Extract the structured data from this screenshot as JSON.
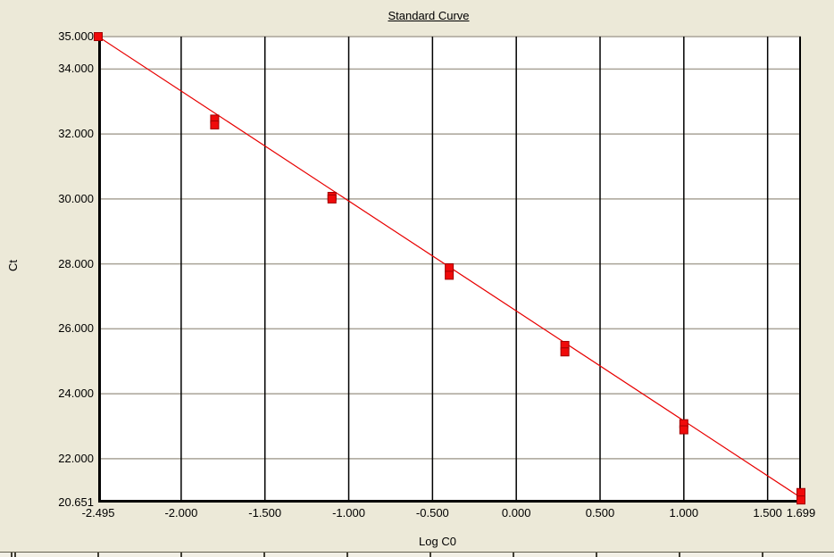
{
  "window": {
    "background_color": "#ECE9D8",
    "plot_background_color": "#FFFFFF"
  },
  "chart": {
    "title": "Standard Curve",
    "y_axis_title": "Ct",
    "x_axis_title": "Log C0"
  },
  "chart_data": {
    "type": "scatter",
    "title": "Standard Curve",
    "xlabel": "Log C0",
    "ylabel": "Ct",
    "xlim": [
      -2.495,
      1.699
    ],
    "ylim": [
      20.651,
      35.0
    ],
    "grid": "on",
    "x_ticks": [
      {
        "label": "-2.495",
        "value": -2.495
      },
      {
        "label": "-2.000",
        "value": -2.0
      },
      {
        "label": "-1.500",
        "value": -1.5
      },
      {
        "label": "-1.000",
        "value": -1.0
      },
      {
        "label": "-0.500",
        "value": -0.5
      },
      {
        "label": "0.000",
        "value": 0.0
      },
      {
        "label": "0.500",
        "value": 0.5
      },
      {
        "label": "1.000",
        "value": 1.0
      },
      {
        "label": "1.500",
        "value": 1.5
      },
      {
        "label": "1.699",
        "value": 1.699
      }
    ],
    "y_ticks": [
      {
        "label": "35.000",
        "value": 35.0
      },
      {
        "label": "34.000",
        "value": 34.0
      },
      {
        "label": "32.000",
        "value": 32.0
      },
      {
        "label": "30.000",
        "value": 30.0
      },
      {
        "label": "28.000",
        "value": 28.0
      },
      {
        "label": "26.000",
        "value": 26.0
      },
      {
        "label": "24.000",
        "value": 24.0
      },
      {
        "label": "22.000",
        "value": 22.0
      },
      {
        "label": "20.651",
        "value": 20.651
      }
    ],
    "points": [
      {
        "x": -2.495,
        "y": 35.0
      },
      {
        "x": -1.8,
        "y": 32.46
      },
      {
        "x": -1.8,
        "y": 32.28
      },
      {
        "x": -1.1,
        "y": 30.08
      },
      {
        "x": -1.1,
        "y": 30.0
      },
      {
        "x": -0.4,
        "y": 27.88
      },
      {
        "x": -0.4,
        "y": 27.65
      },
      {
        "x": 0.29,
        "y": 25.49
      },
      {
        "x": 0.29,
        "y": 25.29
      },
      {
        "x": 1.0,
        "y": 23.08
      },
      {
        "x": 1.0,
        "y": 22.89
      },
      {
        "x": 1.699,
        "y": 20.96
      },
      {
        "x": 1.699,
        "y": 20.73
      }
    ],
    "regression_line": {
      "x1": -2.495,
      "y1": 35.0,
      "x2": 1.699,
      "y2": 20.8,
      "slope": -3.39
    },
    "colors": {
      "horizontal_grid": "#A9A397",
      "vertical_grid": "#000000",
      "axis": "#000000",
      "line": "#E80000",
      "point_fill": "#F00A0A",
      "point_border": "#A00000"
    }
  }
}
